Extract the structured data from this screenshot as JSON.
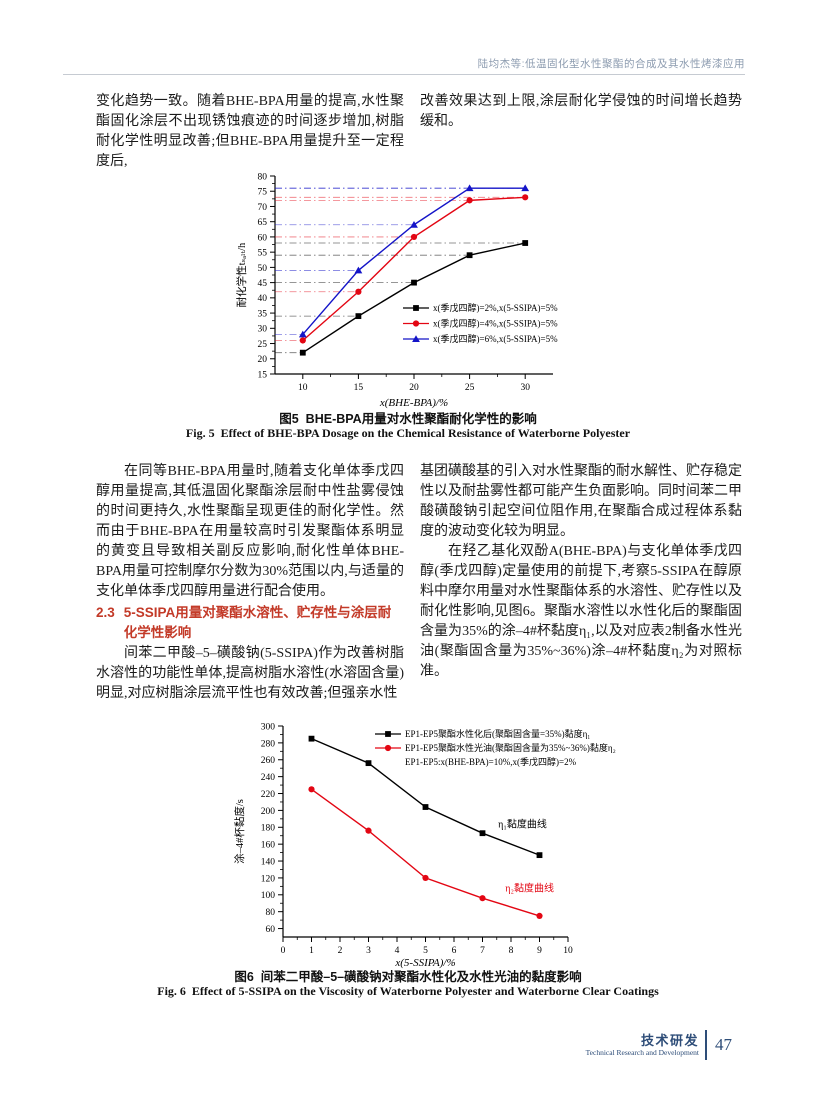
{
  "header": "陆均杰等:低温固化型水性聚酯的合成及其水性烤漆应用",
  "body": {
    "col1_top": "变化趋势一致。随着BHE-BPA用量的提高,水性聚酯固化涂层不出现锈蚀痕迹的时间逐步增加,树脂耐化学性明显改善;但BHE-BPA用量提升至一定程度后,",
    "col2_top": "改善效果达到上限,涂层耐化学侵蚀的时间增长趋势缓和。",
    "col1_mid": "在同等BHE-BPA用量时,随着支化单体季戊四醇用量提高,其低温固化聚酯涂层耐中性盐雾侵蚀的时间更持久,水性聚酯呈现更佳的耐化学性。然而由于BHE-BPA在用量较高时引发聚酯体系明显的黄变且导致相关副反应影响,耐化性单体BHE-BPA用量可控制摩尔分数为30%范围以内,与适量的支化单体季戊四醇用量进行配合使用。",
    "heading_num": "2.3",
    "heading_text": "5-SSIPA用量对聚酯水溶性、贮存性与涂层耐化学性影响",
    "col1_mid2": "间苯二甲酸–5–磺酸钠(5-SSIPA)作为改善树脂水溶性的功能性单体,提高树脂水溶性(水溶固含量)明显,对应树脂涂层流平性也有效改善;但强亲水性",
    "col2_mid": "基团磺酸基的引入对水性聚酯的耐水解性、贮存稳定性以及耐盐雾性都可能产生负面影响。同时间苯二甲酸磺酸钠引起空间位阻作用,在聚酯合成过程体系黏度的波动变化较为明显。",
    "col2_mid2": "在羟乙基化双酚A(BHE-BPA)与支化单体季戊四醇(季戊四醇)定量使用的前提下,考察5-SSIPA在醇原料中摩尔用量对水性聚酯体系的水溶性、贮存性以及耐化性影响,见图6。聚酯水溶性以水性化后的聚酯固含量为35%的涂–4#杯黏度η₁,以及对应表2制备水性光油(聚酯固含量为35%~36%)涂–4#杯黏度η₂为对照标准。"
  },
  "fig5": {
    "caption_cn": "图5  BHE-BPA用量对水性聚酯耐化学性的影响",
    "caption_en": "Fig. 5  Effect of BHE-BPA Dosage on the Chemical Resistance of Waterborne Polyester"
  },
  "fig6": {
    "caption_cn": "图6  间苯二甲酸–5–磺酸钠对聚酯水性化及水性光油的黏度影响",
    "caption_en": "Fig. 6  Effect of 5-SSIPA on the Viscosity of Waterborne Polyester and Waterborne Clear Coatings"
  },
  "footer": {
    "section_cn": "技术研发",
    "section_en": "Technical Research and Development",
    "page_number": "47"
  },
  "chart_data": [
    {
      "id": "fig5",
      "type": "line",
      "title": "",
      "xlabel": "x(BHE-BPA)/%",
      "ylabel": "耐化学性tₛₐₗₜ/h",
      "x": [
        10,
        15,
        20,
        25,
        30
      ],
      "xlim": [
        7.5,
        32.5
      ],
      "ylim": [
        15,
        80
      ],
      "xticks": [
        10,
        15,
        20,
        25,
        30
      ],
      "xtick_minor_step": 2.5,
      "ytick_start": 15,
      "ytick_end": 80,
      "ytick_step": 5,
      "ytick_minor_step": 2.5,
      "grid": false,
      "guide_lines": true,
      "legend_position": "inside-right-lower",
      "series": [
        {
          "name": "x(季戊四醇)=2%,x(5-SSIPA)=5%",
          "color": "#000000",
          "marker": "square",
          "values": [
            22,
            34,
            45,
            54,
            58
          ]
        },
        {
          "name": "x(季戊四醇)=4%,x(5-SSIPA)=5%",
          "color": "#e30613",
          "marker": "circle",
          "values": [
            26,
            42,
            60,
            72,
            73
          ]
        },
        {
          "name": "x(季戊四醇)=6%,x(5-SSIPA)=5%",
          "color": "#1414c8",
          "marker": "triangle",
          "values": [
            28,
            49,
            64,
            76,
            76
          ]
        }
      ],
      "annotations": []
    },
    {
      "id": "fig6",
      "type": "line",
      "title": "",
      "xlabel": "x(5-SSIPA)/%",
      "ylabel": "涂–4#杯黏度/s",
      "x": [
        1,
        3,
        5,
        7,
        9
      ],
      "xlim": [
        0,
        10
      ],
      "ylim": [
        50,
        300
      ],
      "xticks": [
        0,
        1,
        2,
        3,
        4,
        5,
        6,
        7,
        8,
        9,
        10
      ],
      "xtick_minor_step": 0.5,
      "ytick_start": 60,
      "ytick_end": 300,
      "ytick_step": 20,
      "ytick_minor_step": 10,
      "grid": false,
      "guide_lines": false,
      "legend_position": "inside-top-right",
      "legend_note": "EP1-EP5:x(BHE-BPA)=10%,x(季戊四醇)=2%",
      "series": [
        {
          "name": "EP1-EP5聚酯水性化后(聚酯固含量=35%)黏度η₁",
          "color": "#000000",
          "marker": "square",
          "values": [
            285,
            256,
            204,
            173,
            147
          ]
        },
        {
          "name": "EP1-EP5聚酯水性光油(聚酯固含量为35%~36%)黏度η₂",
          "color": "#e30613",
          "marker": "circle",
          "values": [
            225,
            176,
            120,
            96,
            75
          ]
        }
      ],
      "annotations": [
        {
          "text": "η₁黏度曲线",
          "color": "#000000",
          "x": 7.55,
          "y": 180
        },
        {
          "text": "η₂黏度曲线",
          "color": "#e30613",
          "x": 7.8,
          "y": 104
        }
      ]
    }
  ]
}
